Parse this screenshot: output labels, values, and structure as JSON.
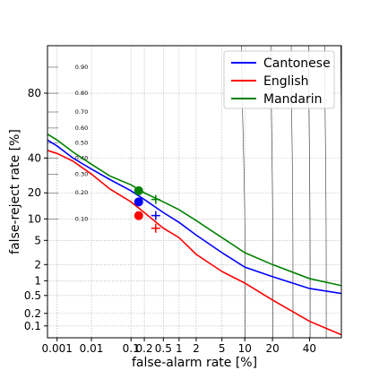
{
  "chart_data": {
    "type": "line",
    "title": "",
    "xlabel": "false-alarm rate [%]",
    "ylabel": "false-reject rate [%]",
    "x_scale": "probit",
    "y_scale": "probit",
    "xlim": [
      0.0005,
      60
    ],
    "ylim": [
      0.05,
      95
    ],
    "grid": true,
    "legend_position": "top-right",
    "x_ticks": [
      {
        "v": 0.001,
        "label": "0.001"
      },
      {
        "v": 0.01,
        "label": "0.01"
      },
      {
        "v": 0.1,
        "label": "0.1"
      },
      {
        "v": 0.2,
        "label": "0.2"
      },
      {
        "v": 0.5,
        "label": "0.5"
      },
      {
        "v": 1,
        "label": "1"
      },
      {
        "v": 2,
        "label": "2"
      },
      {
        "v": 5,
        "label": "5"
      },
      {
        "v": 10,
        "label": "10"
      },
      {
        "v": 20,
        "label": "20"
      },
      {
        "v": 40,
        "label": "40"
      }
    ],
    "y_ticks": [
      {
        "v": 0.1,
        "label": "0.1"
      },
      {
        "v": 0.2,
        "label": "0.2"
      },
      {
        "v": 0.5,
        "label": "0.5"
      },
      {
        "v": 1,
        "label": "1"
      },
      {
        "v": 2,
        "label": "2"
      },
      {
        "v": 5,
        "label": "5"
      },
      {
        "v": 10,
        "label": "10"
      },
      {
        "v": 20,
        "label": "20"
      },
      {
        "v": 40,
        "label": "40"
      },
      {
        "v": 80,
        "label": "80"
      }
    ],
    "cost_contours": {
      "levels": [
        0.1,
        0.2,
        0.3,
        0.4,
        0.5,
        0.6,
        0.7,
        0.8,
        0.9
      ],
      "labels": [
        "0.10",
        "0.20",
        "0.30",
        "0.40",
        "0.50",
        "0.60",
        "0.70",
        "0.80",
        "0.90"
      ],
      "p_target": 0.01,
      "color": "#333333"
    },
    "series": [
      {
        "name": "Cantonese",
        "color": "#0000ff",
        "points": [
          [
            0.0005,
            52
          ],
          [
            0.001,
            48
          ],
          [
            0.003,
            40
          ],
          [
            0.01,
            33
          ],
          [
            0.03,
            27
          ],
          [
            0.1,
            21
          ],
          [
            0.2,
            17
          ],
          [
            0.5,
            12
          ],
          [
            1,
            9
          ],
          [
            2,
            6
          ],
          [
            5,
            3.2
          ],
          [
            10,
            1.8
          ],
          [
            20,
            1.2
          ],
          [
            40,
            0.7
          ],
          [
            60,
            0.55
          ]
        ],
        "min_cost_point": [
          0.15,
          16
        ],
        "act_cost_point": [
          0.35,
          11
        ]
      },
      {
        "name": "English",
        "color": "#ff0000",
        "points": [
          [
            0.0005,
            45
          ],
          [
            0.001,
            43
          ],
          [
            0.003,
            38
          ],
          [
            0.01,
            30
          ],
          [
            0.03,
            22
          ],
          [
            0.1,
            16
          ],
          [
            0.2,
            12
          ],
          [
            0.5,
            7.5
          ],
          [
            1,
            5.5
          ],
          [
            2,
            3
          ],
          [
            5,
            1.5
          ],
          [
            10,
            0.9
          ],
          [
            20,
            0.4
          ],
          [
            40,
            0.13
          ],
          [
            60,
            0.06
          ]
        ],
        "min_cost_point": [
          0.15,
          11
        ],
        "act_cost_point": [
          0.35,
          7.5
        ]
      },
      {
        "name": "Mandarin",
        "color": "#008000",
        "points": [
          [
            0.0005,
            56
          ],
          [
            0.001,
            52
          ],
          [
            0.003,
            44
          ],
          [
            0.01,
            36
          ],
          [
            0.03,
            29
          ],
          [
            0.1,
            24
          ],
          [
            0.2,
            20
          ],
          [
            0.5,
            16
          ],
          [
            1,
            13
          ],
          [
            2,
            9.5
          ],
          [
            5,
            5.5
          ],
          [
            10,
            3.2
          ],
          [
            20,
            2
          ],
          [
            40,
            1.1
          ],
          [
            60,
            0.8
          ]
        ],
        "min_cost_point": [
          0.15,
          21
        ],
        "act_cost_point": [
          0.35,
          17
        ]
      }
    ]
  }
}
